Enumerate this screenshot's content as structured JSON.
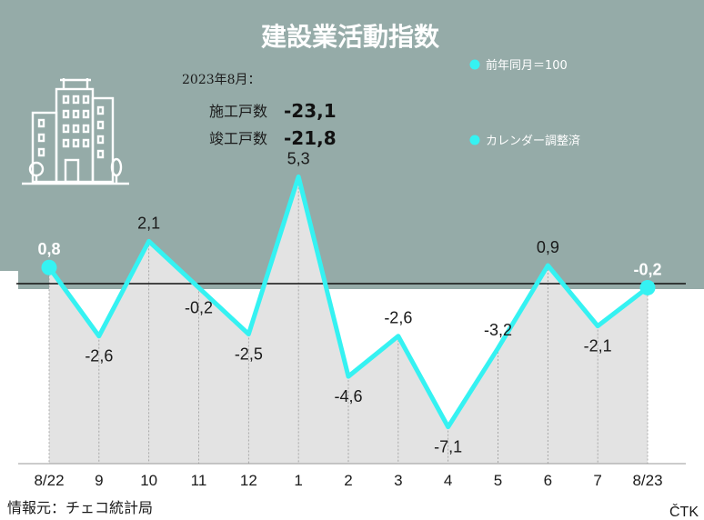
{
  "colors": {
    "panel": "#95aba8",
    "line": "#35f2f2",
    "area": "#e3e3e3",
    "baseline": "#111111",
    "background": "#ffffff"
  },
  "header": {
    "title": "建設業活動指数",
    "period": "2023年8月：",
    "stat1_label": "施工戸数",
    "stat1_value": "-23,1",
    "stat2_label": "竣工戸数",
    "stat2_value": "-21,8"
  },
  "legend": {
    "item1": "前年同月＝100",
    "item2": "カレンダー調整済"
  },
  "footer": {
    "source": "情報元：チェコ統計局",
    "credit": "ČTK"
  },
  "chart_data": {
    "type": "line",
    "categories": [
      "8/22",
      "9",
      "10",
      "11",
      "12",
      "1",
      "2",
      "3",
      "4",
      "5",
      "6",
      "7",
      "8/23"
    ],
    "values": [
      0.8,
      -2.6,
      2.1,
      -0.2,
      -2.5,
      5.3,
      -4.6,
      -2.6,
      -7.1,
      -3.2,
      0.9,
      -2.1,
      -0.2
    ],
    "labels": [
      "0,8",
      "-2,6",
      "2,1",
      "-0,2",
      "-2,5",
      "5,3",
      "-4,6",
      "-2,6",
      "-7,1",
      "-3,2",
      "0,9",
      "-2,1",
      "-0,2"
    ],
    "baseline": 0,
    "ylim": [
      -8,
      6
    ],
    "grid": true,
    "legend_position": "top-right",
    "area_fill": true
  }
}
